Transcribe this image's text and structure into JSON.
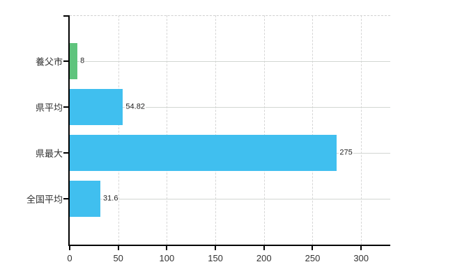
{
  "chart_data": {
    "type": "bar",
    "orientation": "horizontal",
    "title": "",
    "xlabel": "",
    "ylabel": "",
    "legend": "none",
    "grid": {
      "vertical": "dashed",
      "horizontal": "solid",
      "top_border": "dashed"
    },
    "categories": [
      "養父市",
      "県平均",
      "県最大",
      "全国平均"
    ],
    "values": [
      8,
      54.82,
      275,
      31.6
    ],
    "value_labels": [
      "8",
      "54.82",
      "275",
      "31.6"
    ],
    "bar_colors": [
      "#5fc47d",
      "#40bfef",
      "#40bfef",
      "#40bfef"
    ],
    "x_ticks": [
      0,
      50,
      100,
      150,
      200,
      250,
      300
    ],
    "x_tick_labels": [
      "0",
      "50",
      "100",
      "150",
      "200",
      "250",
      "300"
    ],
    "xlim": [
      0,
      330
    ],
    "colors": {
      "bar_blue": "#40bfef",
      "bar_green": "#5fc47d",
      "grid": "#d6d6d6",
      "axis": "#000000",
      "text": "#333333",
      "background": "#ffffff"
    }
  }
}
